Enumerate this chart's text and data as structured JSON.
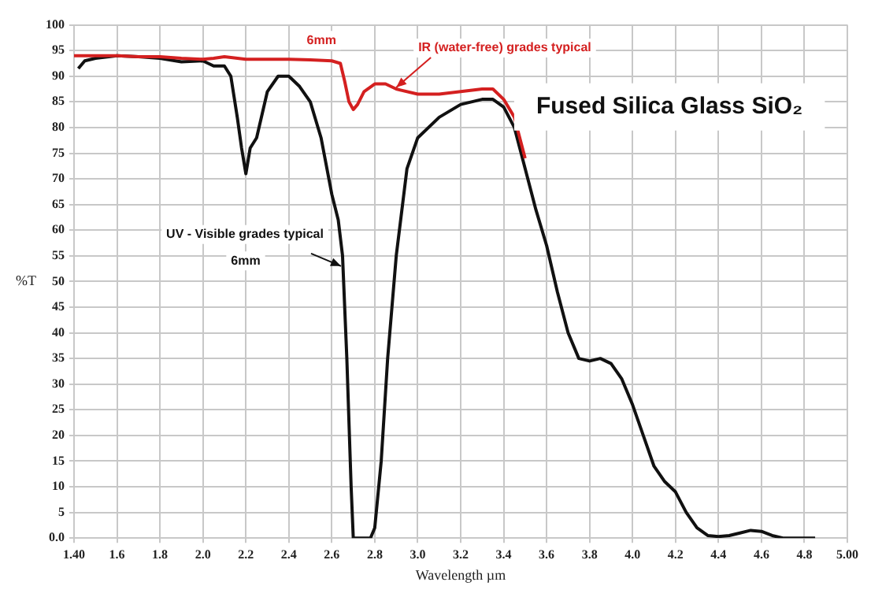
{
  "chart_data": {
    "type": "line",
    "title": "Fused Silica Glass SiO₂",
    "xlabel": "Wavelength µm",
    "ylabel": "%T",
    "annotations": [
      {
        "text": "IR (water-free) grades typical",
        "x": 2.9,
        "y": 87.5
      },
      {
        "text": "UV - Visible grades typical",
        "x": 2.65,
        "y": 53
      },
      "6mm",
      "6mm"
    ],
    "series": [
      {
        "color": "#d42020",
        "x": [
          1.4,
          1.5,
          1.6,
          1.7,
          1.8,
          1.9,
          2.0,
          2.05,
          2.1,
          2.2,
          2.3,
          2.4,
          2.5,
          2.6,
          2.64,
          2.66,
          2.68,
          2.7,
          2.72,
          2.75,
          2.8,
          2.85,
          2.9,
          3.0,
          3.1,
          3.2,
          3.3,
          3.35,
          3.4,
          3.45,
          3.5
        ],
        "values": [
          94,
          94,
          94,
          93.8,
          93.8,
          93.5,
          93.3,
          93.5,
          93.8,
          93.3,
          93.3,
          93.3,
          93.2,
          93,
          92.5,
          89,
          85,
          83.5,
          84.5,
          87,
          88.5,
          88.5,
          87.5,
          86.5,
          86.5,
          87,
          87.5,
          87.5,
          85.5,
          82,
          74
        ]
      },
      {
        "color": "#111111",
        "x": [
          1.42,
          1.45,
          1.5,
          1.6,
          1.7,
          1.8,
          1.9,
          2.0,
          2.05,
          2.1,
          2.13,
          2.16,
          2.18,
          2.2,
          2.22,
          2.25,
          2.3,
          2.35,
          2.4,
          2.45,
          2.5,
          2.55,
          2.6,
          2.63,
          2.65,
          2.67,
          2.69,
          2.7,
          2.75,
          2.78,
          2.8,
          2.83,
          2.86,
          2.9,
          2.95,
          3.0,
          3.1,
          3.2,
          3.3,
          3.35,
          3.4,
          3.45,
          3.5,
          3.55,
          3.6,
          3.65,
          3.7,
          3.75,
          3.8,
          3.85,
          3.9,
          3.95,
          4.0,
          4.05,
          4.1,
          4.15,
          4.2,
          4.25,
          4.3,
          4.35,
          4.4,
          4.45,
          4.5,
          4.55,
          4.6,
          4.65,
          4.7,
          4.85
        ],
        "values": [
          91.5,
          93,
          93.5,
          94,
          93.8,
          93.5,
          92.8,
          93,
          92,
          92,
          90,
          82,
          76,
          71,
          76,
          78,
          87,
          90,
          90,
          88,
          85,
          78,
          67,
          62,
          55,
          35,
          10,
          0,
          0,
          0,
          2,
          15,
          35,
          55,
          72,
          78,
          82,
          84.5,
          85.5,
          85.5,
          84,
          80,
          72,
          64,
          57,
          48,
          40,
          35,
          34.5,
          35,
          34,
          31,
          26,
          20,
          14,
          11,
          9,
          5,
          2,
          0.5,
          0.3,
          0.5,
          1,
          1.5,
          1.3,
          0.5,
          0,
          0
        ]
      }
    ],
    "xlim": [
      1.4,
      5.0
    ],
    "xticks": [
      {
        "value": 1.4,
        "label": "1.40"
      },
      1.6,
      1.8,
      {
        "value": 2.0,
        "label": "2.0"
      },
      2.2,
      2.4,
      2.6,
      2.8,
      {
        "value": 3.0,
        "label": "3.0"
      },
      3.2,
      3.4,
      3.6,
      3.8,
      {
        "value": 4.0,
        "label": "4.0"
      },
      4.2,
      4.4,
      4.6,
      4.8,
      {
        "value": 5.0,
        "label": "5.00"
      }
    ],
    "ylim": [
      0,
      100
    ],
    "yticks": [
      {
        "value": 0,
        "label": "0.0"
      },
      5,
      10,
      15,
      20,
      25,
      30,
      35,
      40,
      45,
      50,
      55,
      60,
      65,
      70,
      75,
      80,
      85,
      90,
      95,
      100
    ],
    "grid": true,
    "legend": false,
    "marker": "none",
    "line_style": "solid"
  }
}
